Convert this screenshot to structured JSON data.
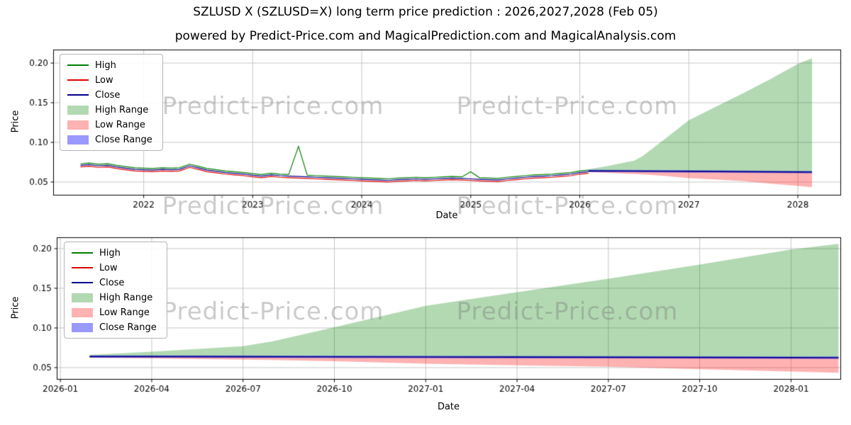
{
  "header": {
    "title": "SZLUSD X (SZLUSD=X) long term price prediction : 2026,2027,2028 (Feb 05)",
    "subtitle": "powered by Predict-Price.com and MagicalPrediction.com and MagicalAnalysis.com"
  },
  "watermark": {
    "text": "Predict-Price.com"
  },
  "chart_data": [
    {
      "type": "line",
      "name": "history-and-forecast",
      "xlabel": "Date",
      "ylabel": "Price",
      "xlim": [
        2021.17,
        2028.39
      ],
      "ylim": [
        0.0339,
        0.217
      ],
      "grid": true,
      "xticks": [
        {
          "v": 2022,
          "label": "2022"
        },
        {
          "v": 2023,
          "label": "2023"
        },
        {
          "v": 2024,
          "label": "2024"
        },
        {
          "v": 2025,
          "label": "2025"
        },
        {
          "v": 2026,
          "label": "2026"
        },
        {
          "v": 2027,
          "label": "2027"
        },
        {
          "v": 2028,
          "label": "2028"
        }
      ],
      "yticks": [
        {
          "v": 0.05,
          "label": "0.05"
        },
        {
          "v": 0.1,
          "label": "0.10"
        },
        {
          "v": 0.15,
          "label": "0.15"
        },
        {
          "v": 0.2,
          "label": "0.20"
        }
      ],
      "legend": [
        {
          "label": "High",
          "kind": "line",
          "color": "#008000"
        },
        {
          "label": "Low",
          "kind": "line",
          "color": "#dd0000"
        },
        {
          "label": "Close",
          "kind": "line",
          "color": "#00008b"
        },
        {
          "label": "High Range",
          "kind": "patch",
          "color": "#0080004d"
        },
        {
          "label": "Low Range",
          "kind": "patch",
          "color": "#ff00004d"
        },
        {
          "label": "Close Range",
          "kind": "patch",
          "color": "#0000ff66"
        }
      ],
      "colors": {
        "high": "#008000",
        "low": "#dd0000",
        "close": "#00008b",
        "high_range": "#0080004d",
        "low_range": "#ff00004d",
        "close_range": "#0000ff66",
        "grid": "#c6c6c6"
      },
      "history": {
        "x": [
          2021.42,
          2021.5,
          2021.58,
          2021.67,
          2021.75,
          2021.83,
          2021.92,
          2022.0,
          2022.08,
          2022.17,
          2022.25,
          2022.33,
          2022.42,
          2022.5,
          2022.58,
          2022.67,
          2022.75,
          2022.83,
          2022.92,
          2023.0,
          2023.08,
          2023.17,
          2023.25,
          2023.33,
          2023.42,
          2023.5,
          2023.58,
          2023.67,
          2023.75,
          2023.83,
          2023.92,
          2024.0,
          2024.08,
          2024.17,
          2024.25,
          2024.33,
          2024.42,
          2024.5,
          2024.58,
          2024.67,
          2024.75,
          2024.83,
          2024.92,
          2025.0,
          2025.08,
          2025.17,
          2025.25,
          2025.33,
          2025.42,
          2025.5,
          2025.58,
          2025.67,
          2025.75,
          2025.83,
          2025.92,
          2026.0,
          2026.08
        ],
        "high": [
          0.073,
          0.074,
          0.0725,
          0.073,
          0.071,
          0.0695,
          0.068,
          0.0675,
          0.067,
          0.068,
          0.0675,
          0.068,
          0.0725,
          0.07,
          0.067,
          0.0655,
          0.064,
          0.063,
          0.062,
          0.0605,
          0.0595,
          0.061,
          0.06,
          0.0595,
          0.095,
          0.0585,
          0.058,
          0.0575,
          0.057,
          0.0565,
          0.056,
          0.0555,
          0.055,
          0.0545,
          0.054,
          0.055,
          0.0555,
          0.056,
          0.0555,
          0.056,
          0.0565,
          0.057,
          0.0565,
          0.063,
          0.0555,
          0.055,
          0.0545,
          0.056,
          0.057,
          0.058,
          0.059,
          0.0595,
          0.06,
          0.061,
          0.062,
          0.064,
          0.065
        ],
        "low": [
          0.069,
          0.07,
          0.0685,
          0.069,
          0.067,
          0.0655,
          0.064,
          0.0635,
          0.063,
          0.064,
          0.0635,
          0.064,
          0.0685,
          0.066,
          0.063,
          0.0615,
          0.06,
          0.059,
          0.058,
          0.0565,
          0.0555,
          0.057,
          0.056,
          0.0555,
          0.055,
          0.0545,
          0.054,
          0.0535,
          0.053,
          0.0525,
          0.052,
          0.0515,
          0.051,
          0.0505,
          0.05,
          0.051,
          0.0515,
          0.052,
          0.0515,
          0.052,
          0.0525,
          0.053,
          0.0525,
          0.052,
          0.0515,
          0.051,
          0.0505,
          0.052,
          0.053,
          0.054,
          0.055,
          0.0555,
          0.056,
          0.057,
          0.058,
          0.06,
          0.061
        ],
        "close": [
          0.071,
          0.072,
          0.0705,
          0.071,
          0.069,
          0.0675,
          0.066,
          0.0655,
          0.065,
          0.066,
          0.0655,
          0.066,
          0.0705,
          0.068,
          0.065,
          0.0635,
          0.062,
          0.061,
          0.06,
          0.0585,
          0.0575,
          0.059,
          0.058,
          0.0575,
          0.057,
          0.0565,
          0.056,
          0.0555,
          0.055,
          0.0545,
          0.054,
          0.0535,
          0.053,
          0.0525,
          0.052,
          0.053,
          0.0535,
          0.054,
          0.0535,
          0.054,
          0.0545,
          0.055,
          0.0545,
          0.054,
          0.0535,
          0.053,
          0.0525,
          0.054,
          0.055,
          0.056,
          0.057,
          0.0575,
          0.058,
          0.059,
          0.06,
          0.062,
          0.063
        ]
      },
      "forecast": {
        "x": [
          2026.08,
          2026.25,
          2026.5,
          2026.58,
          2026.75,
          2027.0,
          2027.25,
          2027.5,
          2027.75,
          2028.0,
          2028.13
        ],
        "high": [
          0.066,
          0.07,
          0.077,
          0.083,
          0.101,
          0.128,
          0.145,
          0.162,
          0.18,
          0.199,
          0.206
        ],
        "low": [
          0.0625,
          0.0615,
          0.06,
          0.0595,
          0.058,
          0.055,
          0.053,
          0.051,
          0.048,
          0.045,
          0.0435
        ],
        "close": [
          0.064,
          0.0639,
          0.0638,
          0.0637,
          0.0636,
          0.0634,
          0.0632,
          0.063,
          0.0628,
          0.0626,
          0.0625
        ],
        "close_range_half": 0.0015
      }
    },
    {
      "type": "line",
      "name": "forecast-detail",
      "xlabel": "Date",
      "ylabel": "Price",
      "xlim": [
        2025.99,
        2028.135
      ],
      "ylim": [
        0.0357,
        0.2143
      ],
      "grid": true,
      "xticks": [
        {
          "v": 2026.0,
          "label": "2026-01"
        },
        {
          "v": 2026.25,
          "label": "2026-04"
        },
        {
          "v": 2026.5,
          "label": "2026-07"
        },
        {
          "v": 2026.75,
          "label": "2026-10"
        },
        {
          "v": 2027.0,
          "label": "2027-01"
        },
        {
          "v": 2027.25,
          "label": "2027-04"
        },
        {
          "v": 2027.5,
          "label": "2027-07"
        },
        {
          "v": 2027.75,
          "label": "2027-10"
        },
        {
          "v": 2028.0,
          "label": "2028-01"
        }
      ],
      "yticks": [
        {
          "v": 0.05,
          "label": "0.05"
        },
        {
          "v": 0.1,
          "label": "0.10"
        },
        {
          "v": 0.15,
          "label": "0.15"
        },
        {
          "v": 0.2,
          "label": "0.20"
        }
      ],
      "legend": [
        {
          "label": "High",
          "kind": "line",
          "color": "#008000"
        },
        {
          "label": "Low",
          "kind": "line",
          "color": "#dd0000"
        },
        {
          "label": "Close",
          "kind": "line",
          "color": "#00008b"
        },
        {
          "label": "High Range",
          "kind": "patch",
          "color": "#0080004d"
        },
        {
          "label": "Low Range",
          "kind": "patch",
          "color": "#ff00004d"
        },
        {
          "label": "Close Range",
          "kind": "patch",
          "color": "#0000ff66"
        }
      ],
      "colors": {
        "high": "#008000",
        "low": "#dd0000",
        "close": "#00008b",
        "high_range": "#0080004d",
        "low_range": "#ff00004d",
        "close_range": "#0000ff66",
        "grid": "#c6c6c6"
      },
      "forecast": {
        "x": [
          2026.08,
          2026.25,
          2026.5,
          2026.58,
          2026.75,
          2027.0,
          2027.25,
          2027.5,
          2027.75,
          2028.0,
          2028.13
        ],
        "high": [
          0.066,
          0.07,
          0.077,
          0.083,
          0.101,
          0.128,
          0.145,
          0.162,
          0.18,
          0.199,
          0.206
        ],
        "low": [
          0.0625,
          0.0615,
          0.06,
          0.0595,
          0.058,
          0.055,
          0.053,
          0.051,
          0.048,
          0.045,
          0.0435
        ],
        "close": [
          0.064,
          0.0639,
          0.0638,
          0.0637,
          0.0636,
          0.0634,
          0.0632,
          0.063,
          0.0628,
          0.0626,
          0.0625
        ],
        "close_range_half": 0.0015
      }
    }
  ]
}
